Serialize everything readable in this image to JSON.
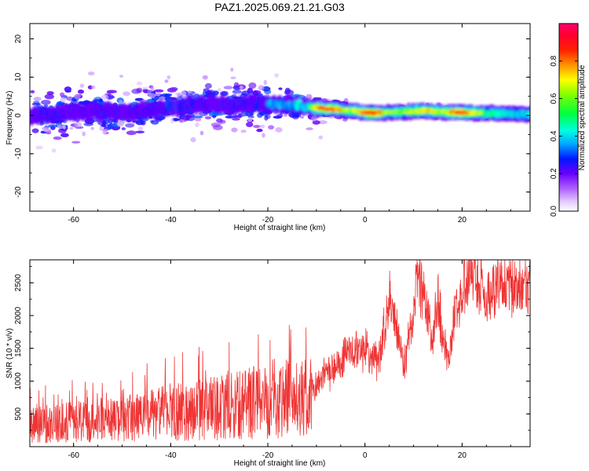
{
  "figure": {
    "title": "PAZ1.2025.069.21.21.G03"
  },
  "chart_data": [
    {
      "type": "heatmap",
      "xlabel": "Height of straight line (km)",
      "ylabel": "Frequency (Hz)",
      "xlim": [
        -69,
        34
      ],
      "ylim": [
        -25,
        24
      ],
      "xticks": [
        -60,
        -40,
        -20,
        0,
        20
      ],
      "yticks": [
        -20,
        -10,
        0,
        10,
        20
      ],
      "colorbar": {
        "label": "Normalized spectral amplitude",
        "range": [
          0.0,
          1.0
        ],
        "ticks": [
          0.0,
          0.2,
          0.4,
          0.6,
          0.8
        ],
        "colormap": "rainbow (white-violet-blue-cyan-green-yellow-red-magenta)"
      },
      "ridge": [
        {
          "x": -68,
          "f": 0.0,
          "a": 0.35
        },
        {
          "x": -64,
          "f": 0.3,
          "a": 0.4
        },
        {
          "x": -60,
          "f": 0.8,
          "a": 0.35
        },
        {
          "x": -56,
          "f": 1.2,
          "a": 0.4
        },
        {
          "x": -52,
          "f": 0.7,
          "a": 0.35
        },
        {
          "x": -48,
          "f": 1.0,
          "a": 0.4
        },
        {
          "x": -44,
          "f": 1.5,
          "a": 0.35
        },
        {
          "x": -40,
          "f": 2.2,
          "a": 0.45
        },
        {
          "x": -36,
          "f": 2.8,
          "a": 0.4
        },
        {
          "x": -32,
          "f": 3.2,
          "a": 0.35
        },
        {
          "x": -28,
          "f": 2.5,
          "a": 0.4
        },
        {
          "x": -24,
          "f": 2.8,
          "a": 0.35
        },
        {
          "x": -20,
          "f": 3.0,
          "a": 0.45
        },
        {
          "x": -16,
          "f": 2.8,
          "a": 0.45
        },
        {
          "x": -12,
          "f": 2.3,
          "a": 0.5
        },
        {
          "x": -9,
          "f": 1.8,
          "a": 0.85
        },
        {
          "x": -6,
          "f": 1.6,
          "a": 0.8
        },
        {
          "x": -3,
          "f": 1.2,
          "a": 0.6
        },
        {
          "x": 0,
          "f": 0.8,
          "a": 0.8
        },
        {
          "x": 2,
          "f": 0.7,
          "a": 0.9
        },
        {
          "x": 4,
          "f": 0.8,
          "a": 0.65
        },
        {
          "x": 8,
          "f": 0.9,
          "a": 0.6
        },
        {
          "x": 12,
          "f": 1.2,
          "a": 0.75
        },
        {
          "x": 16,
          "f": 0.9,
          "a": 0.65
        },
        {
          "x": 20,
          "f": 0.8,
          "a": 0.85
        },
        {
          "x": 24,
          "f": 0.6,
          "a": 0.6
        },
        {
          "x": 28,
          "f": 0.5,
          "a": 0.55
        },
        {
          "x": 34,
          "f": 0.3,
          "a": 0.5
        }
      ]
    },
    {
      "type": "line",
      "xlabel": "Height of straight line (km)",
      "ylabel": "SNR (10 * v/v)",
      "xlim": [
        -69,
        34
      ],
      "ylim": [
        0,
        2850
      ],
      "xticks": [
        -60,
        -40,
        -20,
        0,
        20
      ],
      "yticks": [
        500,
        1000,
        1500,
        2000,
        2500
      ],
      "color": "#ef3434",
      "envelope": [
        {
          "x": -68,
          "y": 350
        },
        {
          "x": -62,
          "y": 400
        },
        {
          "x": -56,
          "y": 420
        },
        {
          "x": -50,
          "y": 450
        },
        {
          "x": -44,
          "y": 520
        },
        {
          "x": -38,
          "y": 580
        },
        {
          "x": -32,
          "y": 620
        },
        {
          "x": -26,
          "y": 680
        },
        {
          "x": -20,
          "y": 800
        },
        {
          "x": -16,
          "y": 780
        },
        {
          "x": -11.5,
          "y": 780
        },
        {
          "x": -11,
          "y": 900
        },
        {
          "x": -9,
          "y": 1050
        },
        {
          "x": -6,
          "y": 1200
        },
        {
          "x": -3,
          "y": 1500
        },
        {
          "x": 0,
          "y": 1450
        },
        {
          "x": 3,
          "y": 1350
        },
        {
          "x": 5,
          "y": 2300
        },
        {
          "x": 7,
          "y": 1700
        },
        {
          "x": 8,
          "y": 1150
        },
        {
          "x": 11,
          "y": 2650
        },
        {
          "x": 14,
          "y": 1600
        },
        {
          "x": 15,
          "y": 2300
        },
        {
          "x": 17,
          "y": 1300
        },
        {
          "x": 19,
          "y": 2150
        },
        {
          "x": 22,
          "y": 2750
        },
        {
          "x": 25,
          "y": 2300
        },
        {
          "x": 28,
          "y": 2500
        },
        {
          "x": 31,
          "y": 2400
        },
        {
          "x": 34,
          "y": 2500
        }
      ]
    }
  ]
}
